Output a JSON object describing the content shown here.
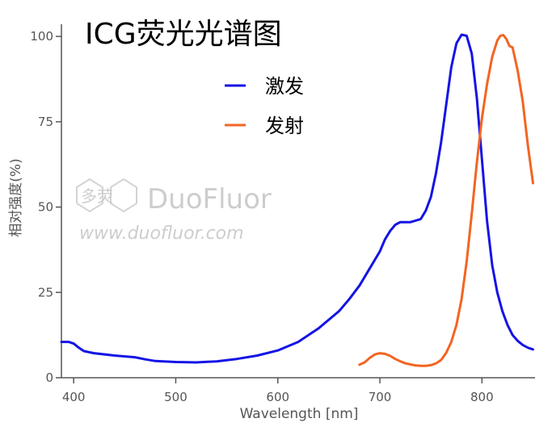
{
  "chart_data": {
    "type": "line",
    "title": "ICG荧光光谱图",
    "xlabel": "Wavelength [nm]",
    "ylabel": "相对强度(%)",
    "xlim": [
      388,
      852
    ],
    "ylim": [
      0,
      105
    ],
    "xticks": [
      400,
      500,
      600,
      700,
      800
    ],
    "yticks": [
      0,
      25,
      50,
      75,
      100
    ],
    "xtick_labels": [
      "400",
      "500",
      "600",
      "700",
      "800"
    ],
    "ytick_labels": [
      "0",
      "25",
      "50",
      "75",
      "100"
    ],
    "grid": false,
    "legend_position": "top-center",
    "series": [
      {
        "name": "激发",
        "color": "#1414e6",
        "x": [
          388,
          395,
          400,
          405,
          410,
          420,
          440,
          460,
          470,
          480,
          500,
          520,
          540,
          560,
          580,
          600,
          620,
          640,
          660,
          670,
          680,
          690,
          700,
          705,
          710,
          715,
          720,
          725,
          730,
          740,
          745,
          750,
          755,
          760,
          765,
          770,
          775,
          780,
          785,
          790,
          795,
          800,
          805,
          810,
          815,
          820,
          825,
          830,
          835,
          840,
          845,
          850
        ],
        "y": [
          10.5,
          10.5,
          10,
          8.8,
          7.8,
          7.2,
          6.5,
          6.0,
          5.4,
          4.9,
          4.6,
          4.5,
          4.8,
          5.5,
          6.5,
          8.0,
          10.5,
          14.5,
          19.5,
          23,
          27,
          32,
          37,
          40.5,
          43,
          44.8,
          45.6,
          45.6,
          45.6,
          46.5,
          49,
          53,
          60,
          69,
          80,
          91,
          98,
          100.5,
          100.2,
          95,
          82,
          64,
          46,
          33,
          25,
          19.5,
          15.5,
          12.5,
          10.8,
          9.6,
          8.8,
          8.3
        ]
      },
      {
        "name": "发射",
        "color": "#f26522",
        "x": [
          680,
          685,
          690,
          695,
          700,
          705,
          710,
          715,
          720,
          725,
          730,
          735,
          740,
          745,
          750,
          755,
          760,
          765,
          770,
          775,
          780,
          785,
          790,
          795,
          800,
          805,
          810,
          815,
          818,
          821,
          824,
          827,
          830,
          835,
          840,
          845,
          850
        ],
        "y": [
          3.8,
          4.5,
          5.8,
          6.8,
          7.2,
          7.0,
          6.4,
          5.5,
          4.8,
          4.2,
          3.9,
          3.6,
          3.5,
          3.5,
          3.7,
          4.2,
          5.2,
          7.3,
          10.5,
          15.5,
          23,
          34,
          48,
          63,
          76,
          86,
          94,
          98.8,
          100.2,
          100.4,
          99.2,
          97.2,
          96.8,
          90,
          81,
          68,
          57
        ]
      }
    ],
    "watermark": {
      "brand": "DuoFluor",
      "cn": "多荧",
      "url": "www.duofluor.com"
    }
  }
}
